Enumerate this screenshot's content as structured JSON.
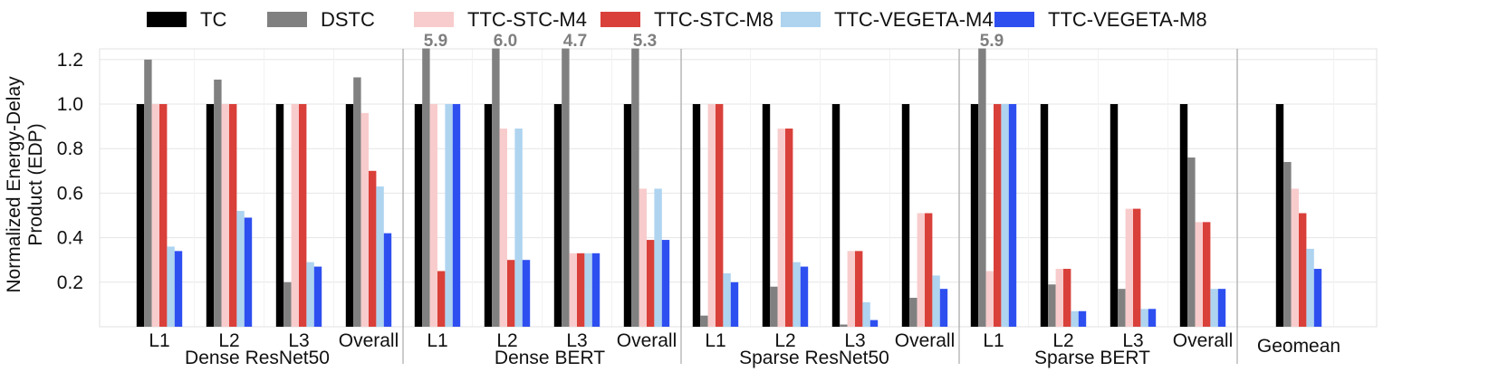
{
  "chart_data": {
    "type": "bar",
    "title": "",
    "ylabel_line1": "Normalized Energy-Delay",
    "ylabel_line2": "Product (EDP)",
    "ylim": [
      0,
      1.25
    ],
    "yticks": [
      "0.2",
      "0.4",
      "0.6",
      "0.8",
      "1.0",
      "1.2"
    ],
    "ytick_values": [
      0.2,
      0.4,
      0.6,
      0.8,
      1.0,
      1.2
    ],
    "grid": true,
    "legend_position": "top",
    "series": [
      {
        "name": "TC",
        "color": "#000000"
      },
      {
        "name": "DSTC",
        "color": "#808080"
      },
      {
        "name": "TTC-STC-M4",
        "color": "#f8cccc"
      },
      {
        "name": "TTC-STC-M8",
        "color": "#d9403a"
      },
      {
        "name": "TTC-VEGETA-M4",
        "color": "#aed4f0"
      },
      {
        "name": "TTC-VEGETA-M8",
        "color": "#2e4ff0"
      }
    ],
    "groups": [
      {
        "name": "Dense ResNet50",
        "categories": [
          {
            "label": "L1",
            "values": [
              1.0,
              1.2,
              1.0,
              1.0,
              0.36,
              0.34
            ]
          },
          {
            "label": "L2",
            "values": [
              1.0,
              1.11,
              1.0,
              1.0,
              0.52,
              0.49
            ]
          },
          {
            "label": "L3",
            "values": [
              1.0,
              0.2,
              1.0,
              1.0,
              0.29,
              0.27
            ]
          },
          {
            "label": "Overall",
            "values": [
              1.0,
              1.12,
              0.96,
              0.7,
              0.63,
              0.42
            ]
          }
        ]
      },
      {
        "name": "Dense BERT",
        "categories": [
          {
            "label": "L1",
            "values": [
              1.0,
              5.9,
              1.0,
              0.25,
              1.0,
              1.0
            ],
            "overflow_label": "5.9"
          },
          {
            "label": "L2",
            "values": [
              1.0,
              6.0,
              0.89,
              0.3,
              0.89,
              0.3
            ],
            "overflow_label": "6.0"
          },
          {
            "label": "L3",
            "values": [
              1.0,
              4.7,
              0.33,
              0.33,
              0.33,
              0.33
            ],
            "overflow_label": "4.7"
          },
          {
            "label": "Overall",
            "values": [
              1.0,
              5.3,
              0.62,
              0.39,
              0.62,
              0.39
            ],
            "overflow_label": "5.3"
          }
        ]
      },
      {
        "name": "Sparse ResNet50",
        "categories": [
          {
            "label": "L1",
            "values": [
              1.0,
              0.05,
              1.0,
              1.0,
              0.24,
              0.2
            ]
          },
          {
            "label": "L2",
            "values": [
              1.0,
              0.18,
              0.89,
              0.89,
              0.29,
              0.27
            ]
          },
          {
            "label": "L3",
            "values": [
              1.0,
              0.01,
              0.34,
              0.34,
              0.11,
              0.03
            ]
          },
          {
            "label": "Overall",
            "values": [
              1.0,
              0.13,
              0.51,
              0.51,
              0.23,
              0.17
            ]
          }
        ]
      },
      {
        "name": "Sparse BERT",
        "categories": [
          {
            "label": "L1",
            "values": [
              1.0,
              5.9,
              0.25,
              1.0,
              1.0,
              1.0
            ],
            "overflow_label": "5.9"
          },
          {
            "label": "L2",
            "values": [
              1.0,
              0.19,
              0.26,
              0.26,
              0.07,
              0.07
            ]
          },
          {
            "label": "L3",
            "values": [
              1.0,
              0.17,
              0.53,
              0.53,
              0.08,
              0.08
            ]
          },
          {
            "label": "Overall",
            "values": [
              1.0,
              0.76,
              0.47,
              0.47,
              0.17,
              0.17
            ]
          }
        ]
      },
      {
        "name": "Geomean",
        "categories": [
          {
            "label": "",
            "values": [
              1.0,
              0.74,
              0.62,
              0.51,
              0.35,
              0.26
            ]
          }
        ]
      }
    ]
  }
}
